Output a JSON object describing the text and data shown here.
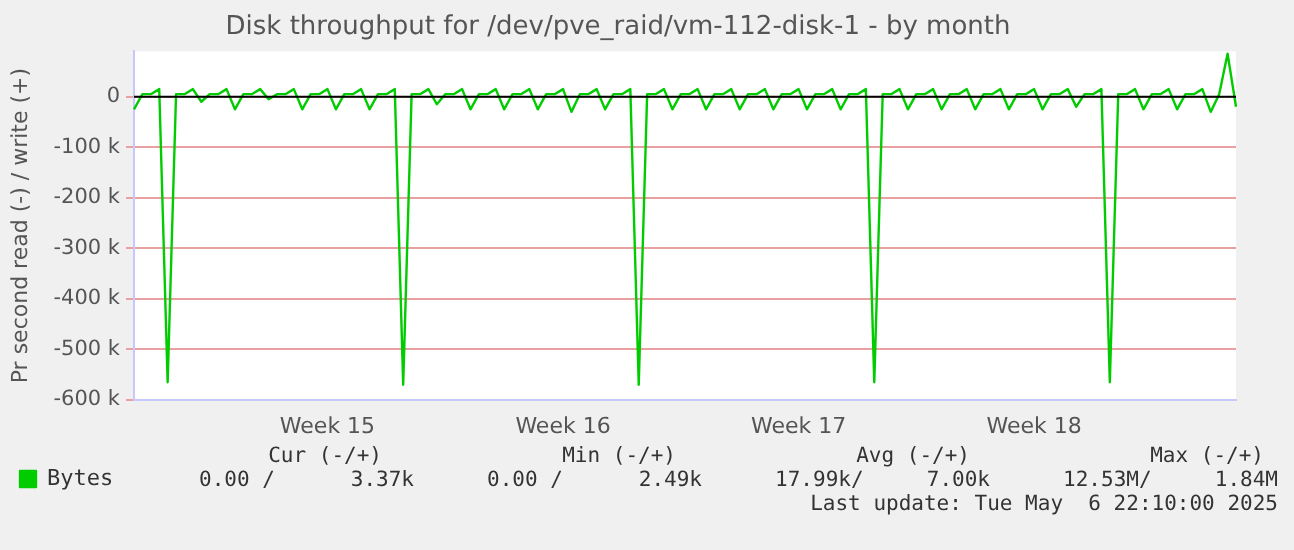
{
  "chart_data": {
    "type": "line",
    "title": "Disk throughput for /dev/pve_raid/vm-112-disk-1 - by month",
    "ylabel": "Pr second read (-) / write (+)",
    "categories": [
      null,
      null,
      null,
      null,
      null,
      null,
      null,
      null,
      null,
      null,
      null,
      null,
      null,
      null,
      null,
      null,
      null,
      null,
      null,
      null,
      null,
      null,
      null,
      "Week 15",
      null,
      null,
      null,
      null,
      null,
      null,
      null,
      null,
      null,
      null,
      null,
      null,
      null,
      null,
      null,
      null,
      null,
      null,
      null,
      null,
      null,
      null,
      null,
      null,
      null,
      null,
      null,
      "Week 16",
      null,
      null,
      null,
      null,
      null,
      null,
      null,
      null,
      null,
      null,
      null,
      null,
      null,
      null,
      null,
      null,
      null,
      null,
      null,
      null,
      null,
      null,
      null,
      null,
      null,
      null,
      null,
      "Week 17",
      null,
      null,
      null,
      null,
      null,
      null,
      null,
      null,
      null,
      null,
      null,
      null,
      null,
      null,
      null,
      null,
      null,
      null,
      null,
      null,
      null,
      null,
      null,
      null,
      null,
      null,
      null,
      "Week 18",
      null,
      null,
      null,
      null,
      null,
      null,
      null,
      null,
      null,
      null,
      null,
      null,
      null,
      null,
      null,
      null,
      null,
      null,
      null,
      null,
      null,
      null,
      null,
      null
    ],
    "series": [
      {
        "name": "Bytes",
        "color": "#00cc00",
        "values": [
          -25000,
          5000,
          5000,
          15000,
          -565000,
          5000,
          5000,
          15000,
          -10000,
          5000,
          5000,
          15000,
          -25000,
          5000,
          5000,
          15000,
          -5000,
          5000,
          5000,
          15000,
          -25000,
          5000,
          5000,
          15000,
          -25000,
          5000,
          5000,
          15000,
          -25000,
          5000,
          5000,
          15000,
          -570000,
          5000,
          5000,
          15000,
          -15000,
          5000,
          5000,
          15000,
          -25000,
          5000,
          5000,
          15000,
          -25000,
          5000,
          5000,
          15000,
          -25000,
          5000,
          5000,
          15000,
          -30000,
          5000,
          5000,
          15000,
          -25000,
          5000,
          5000,
          15000,
          -570000,
          5000,
          5000,
          15000,
          -25000,
          5000,
          5000,
          15000,
          -25000,
          5000,
          5000,
          15000,
          -25000,
          5000,
          5000,
          15000,
          -25000,
          5000,
          5000,
          15000,
          -25000,
          5000,
          5000,
          15000,
          -25000,
          5000,
          5000,
          15000,
          -565000,
          5000,
          5000,
          15000,
          -25000,
          5000,
          5000,
          15000,
          -25000,
          5000,
          5000,
          15000,
          -25000,
          5000,
          5000,
          15000,
          -25000,
          5000,
          5000,
          15000,
          -25000,
          5000,
          5000,
          15000,
          -20000,
          5000,
          5000,
          15000,
          -565000,
          5000,
          5000,
          15000,
          -25000,
          5000,
          5000,
          15000,
          -25000,
          5000,
          5000,
          15000,
          -30000,
          5000,
          85000,
          -20000
        ]
      }
    ],
    "ylim": [
      -600000,
      90000
    ],
    "yticks": [
      {
        "value": -600000,
        "label": "-600 k"
      },
      {
        "value": -500000,
        "label": "-500 k"
      },
      {
        "value": -400000,
        "label": "-400 k"
      },
      {
        "value": -300000,
        "label": "-300 k"
      },
      {
        "value": -200000,
        "label": "-200 k"
      },
      {
        "value": -100000,
        "label": "-100 k"
      },
      0
    ],
    "ref_lines": [
      {
        "axis": "y",
        "value": 0,
        "color": "#000000"
      }
    ],
    "grid": "y",
    "legend": "bottom left",
    "marker": "none",
    "line_style": "solid",
    "annotations": [
      "Cur (-/+)",
      "Min (-/+)",
      "Avg (-/+)",
      "Max (-/+)",
      "0.00 /      3.37k",
      "0.00 /      2.49k",
      "17.99k/     7.00k",
      "12.53M/     1.84M",
      "Last update: Tue May  6 22:10:00 2025"
    ]
  }
}
